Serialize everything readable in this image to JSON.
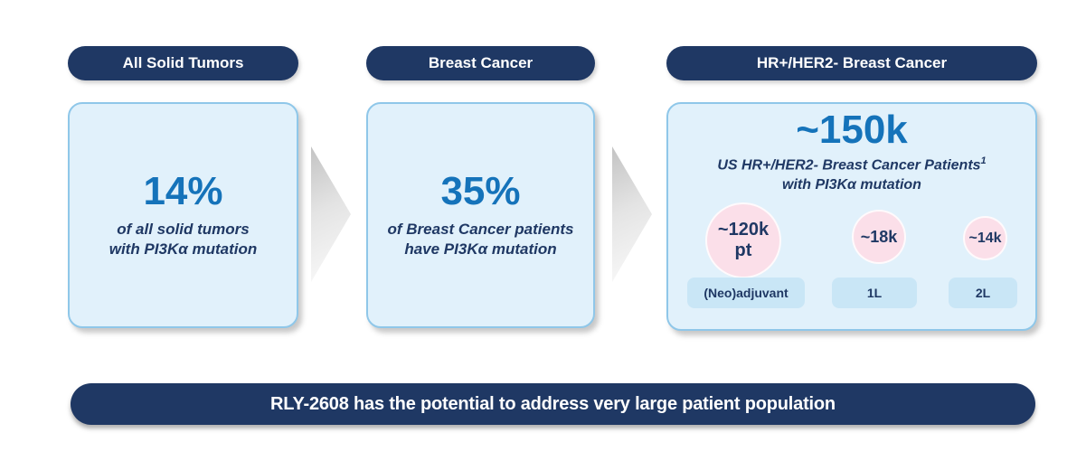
{
  "columns": [
    {
      "header": "All Solid Tumors",
      "stat": "14%",
      "caption_line1": "of all solid tumors",
      "caption_line2": "with PI3Kα mutation"
    },
    {
      "header": "Breast Cancer",
      "stat": "35%",
      "caption_line1": "of Breast Cancer patients",
      "caption_line2": "have PI3Kα mutation"
    },
    {
      "header": "HR+/HER2- Breast Cancer",
      "stat": "~150k",
      "subtitle_line1": "US HR+/HER2- Breast Cancer Patients",
      "subtitle_superscript": "1",
      "subtitle_line2": "with PI3Kα mutation",
      "segments": [
        {
          "bubble": "~120k pt",
          "label": "(Neo)adjuvant"
        },
        {
          "bubble": "~18k",
          "label": "1L"
        },
        {
          "bubble": "~14k",
          "label": "2L"
        }
      ]
    }
  ],
  "banner": "RLY-2608 has the potential to address very large patient population",
  "colors": {
    "navy": "#1f3864",
    "stat_blue": "#1573ba",
    "box_fill": "#e1f1fb",
    "box_border": "#8fc7e9",
    "bubble_pink": "#fbdfe9",
    "chip_blue": "#c9e6f6",
    "arrow_gray": "#c3c3c3"
  }
}
